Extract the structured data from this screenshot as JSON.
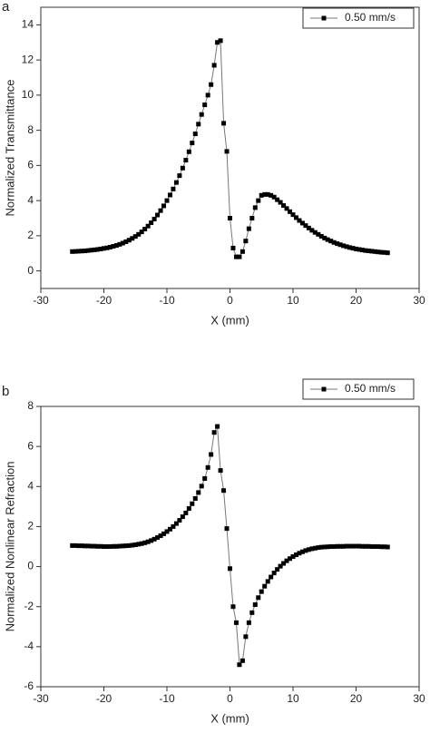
{
  "chart_data": [
    {
      "type": "line",
      "label": "a",
      "xlabel": "X (mm)",
      "ylabel": "Normalized Transmittance",
      "xlim": [
        -30,
        30
      ],
      "xticks": [
        -30,
        -20,
        -10,
        0,
        10,
        20,
        30
      ],
      "ylim": [
        -1,
        15
      ],
      "yticks": [
        0,
        2,
        4,
        6,
        8,
        10,
        12,
        14
      ],
      "legend": "upper right",
      "x": [
        -25,
        -24.5,
        -24,
        -23.5,
        -23,
        -22.5,
        -22,
        -21.5,
        -21,
        -20.5,
        -20,
        -19.5,
        -19,
        -18.5,
        -18,
        -17.5,
        -17,
        -16.5,
        -16,
        -15.5,
        -15,
        -14.5,
        -14,
        -13.5,
        -13,
        -12.5,
        -12,
        -11.5,
        -11,
        -10.5,
        -10,
        -9.5,
        -9,
        -8.5,
        -8,
        -7.5,
        -7,
        -6.5,
        -6,
        -5.5,
        -5,
        -4.5,
        -4,
        -3.5,
        -3,
        -2.5,
        -2,
        -1.5,
        -1,
        -0.5,
        0,
        0.5,
        1,
        1.5,
        2,
        2.5,
        3,
        3.5,
        4,
        4.5,
        5,
        5.5,
        6,
        6.5,
        7,
        7.5,
        8,
        8.5,
        9,
        9.5,
        10,
        10.5,
        11,
        11.5,
        12,
        12.5,
        13,
        13.5,
        14,
        14.5,
        15,
        15.5,
        16,
        16.5,
        17,
        17.5,
        18,
        18.5,
        19,
        19.5,
        20,
        20.5,
        21,
        21.5,
        22,
        22.5,
        23,
        23.5,
        24,
        24.5,
        25
      ],
      "series": [
        {
          "name": "0.50 mm/s",
          "color": "#000000",
          "line_color": "#777777",
          "values": [
            1.1,
            1.11,
            1.12,
            1.13,
            1.14,
            1.16,
            1.18,
            1.2,
            1.22,
            1.25,
            1.28,
            1.31,
            1.35,
            1.4,
            1.45,
            1.51,
            1.58,
            1.66,
            1.75,
            1.85,
            1.96,
            2.08,
            2.22,
            2.38,
            2.55,
            2.74,
            2.95,
            3.18,
            3.43,
            3.7,
            4.0,
            4.32,
            4.66,
            5.03,
            5.42,
            5.85,
            6.3,
            6.78,
            7.28,
            7.8,
            8.35,
            8.9,
            9.45,
            10.0,
            10.6,
            11.7,
            13.0,
            13.1,
            8.4,
            6.8,
            3.0,
            1.3,
            0.8,
            0.8,
            1.1,
            1.7,
            2.4,
            3.0,
            3.6,
            4.0,
            4.3,
            4.35,
            4.35,
            4.3,
            4.2,
            4.05,
            3.9,
            3.72,
            3.55,
            3.37,
            3.2,
            3.03,
            2.87,
            2.72,
            2.58,
            2.44,
            2.31,
            2.19,
            2.08,
            1.97,
            1.87,
            1.78,
            1.7,
            1.62,
            1.55,
            1.49,
            1.43,
            1.38,
            1.33,
            1.29,
            1.25,
            1.22,
            1.19,
            1.16,
            1.14,
            1.12,
            1.1,
            1.08,
            1.06,
            1.05,
            1.03
          ]
        }
      ]
    },
    {
      "type": "line",
      "label": "b",
      "xlabel": "X (mm)",
      "ylabel": "Normalized Nonlinear Refraction",
      "xlim": [
        -30,
        30
      ],
      "xticks": [
        -30,
        -20,
        -10,
        0,
        10,
        20,
        30
      ],
      "ylim": [
        -6,
        8
      ],
      "yticks": [
        -6,
        -4,
        -2,
        0,
        2,
        4,
        6,
        8
      ],
      "legend": "upper right",
      "x": [
        -25,
        -24.5,
        -24,
        -23.5,
        -23,
        -22.5,
        -22,
        -21.5,
        -21,
        -20.5,
        -20,
        -19.5,
        -19,
        -18.5,
        -18,
        -17.5,
        -17,
        -16.5,
        -16,
        -15.5,
        -15,
        -14.5,
        -14,
        -13.5,
        -13,
        -12.5,
        -12,
        -11.5,
        -11,
        -10.5,
        -10,
        -9.5,
        -9,
        -8.5,
        -8,
        -7.5,
        -7,
        -6.5,
        -6,
        -5.5,
        -5,
        -4.5,
        -4,
        -3.5,
        -3,
        -2.5,
        -2,
        -1.5,
        -1,
        -0.5,
        0,
        0.5,
        1,
        1.5,
        2,
        2.5,
        3,
        3.5,
        4,
        4.5,
        5,
        5.5,
        6,
        6.5,
        7,
        7.5,
        8,
        8.5,
        9,
        9.5,
        10,
        10.5,
        11,
        11.5,
        12,
        12.5,
        13,
        13.5,
        14,
        14.5,
        15,
        15.5,
        16,
        16.5,
        17,
        17.5,
        18,
        18.5,
        19,
        19.5,
        20,
        20.5,
        21,
        21.5,
        22,
        22.5,
        23,
        23.5,
        24,
        24.5,
        25
      ],
      "series": [
        {
          "name": "0.50 mm/s",
          "color": "#000000",
          "line_color": "#777777",
          "values": [
            1.05,
            1.05,
            1.04,
            1.04,
            1.03,
            1.03,
            1.02,
            1.02,
            1.01,
            1.01,
            1.0,
            1.0,
            1.0,
            1.01,
            1.01,
            1.02,
            1.03,
            1.04,
            1.05,
            1.07,
            1.09,
            1.12,
            1.15,
            1.19,
            1.24,
            1.3,
            1.37,
            1.45,
            1.54,
            1.64,
            1.75,
            1.87,
            2.0,
            2.15,
            2.31,
            2.49,
            2.68,
            2.9,
            3.14,
            3.4,
            3.7,
            4.02,
            4.4,
            4.95,
            5.6,
            6.7,
            7.0,
            4.8,
            3.8,
            1.9,
            -0.1,
            -2.0,
            -2.8,
            -4.9,
            -4.7,
            -3.5,
            -2.8,
            -2.3,
            -1.9,
            -1.55,
            -1.25,
            -0.98,
            -0.74,
            -0.52,
            -0.32,
            -0.14,
            0.02,
            0.16,
            0.29,
            0.4,
            0.5,
            0.59,
            0.67,
            0.74,
            0.8,
            0.85,
            0.89,
            0.92,
            0.95,
            0.97,
            0.98,
            0.99,
            1.0,
            1.0,
            1.01,
            1.01,
            1.01,
            1.02,
            1.02,
            1.02,
            1.02,
            1.02,
            1.01,
            1.01,
            1.01,
            1.0,
            1.0,
            1.0,
            0.99,
            0.99,
            0.98
          ]
        }
      ]
    }
  ]
}
